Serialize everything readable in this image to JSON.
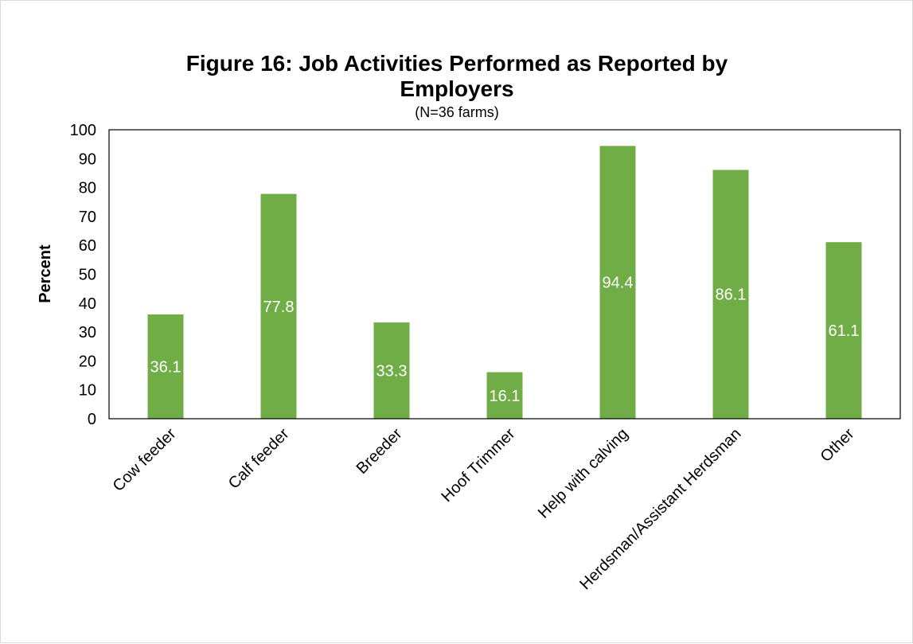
{
  "chart_data": {
    "type": "bar",
    "title_lines": [
      "Figure 16:  Job Activities Performed as Reported by",
      "Employers"
    ],
    "subtitle": "(N=36 farms)",
    "xlabel": "",
    "ylabel": "Percent",
    "ylim": [
      0,
      100
    ],
    "yticks": [
      0,
      10,
      20,
      30,
      40,
      50,
      60,
      70,
      80,
      90,
      100
    ],
    "categories": [
      "Cow feeder",
      "Calf feeder",
      "Breeder",
      "Hoof Trimmer",
      "Help with calving",
      "Herdsman/Assistant Herdsman",
      "Other"
    ],
    "values": [
      36.1,
      77.8,
      33.3,
      16.1,
      94.4,
      86.1,
      61.1
    ],
    "data_labels": [
      "36.1",
      "77.8",
      "33.3",
      "16.1",
      "94.4",
      "86.1",
      "61.1"
    ],
    "bar_color": "#70ad47",
    "data_label_color": "#ffffff",
    "grid": false,
    "legend": "none"
  }
}
